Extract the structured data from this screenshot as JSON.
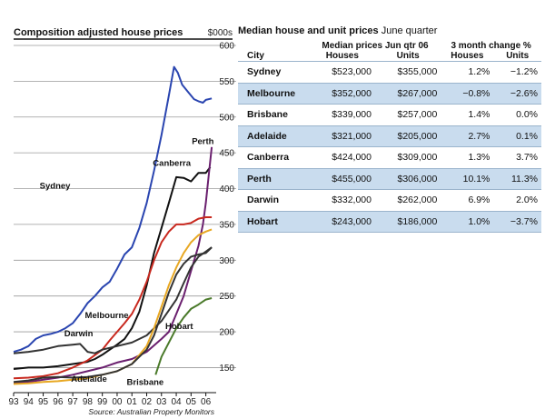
{
  "line_chart": {
    "title": "Composition adjusted house prices",
    "unit": "$000s",
    "source": "Source: Australian Property Monitors"
  },
  "table": {
    "title": "Median house and unit prices",
    "subtitle": "June quarter",
    "group_headers": [
      "Median prices Jun qtr 06",
      "3 month change %"
    ],
    "col_headers": [
      "City",
      "Houses",
      "Units",
      "Houses",
      "Units"
    ]
  },
  "chart_data": [
    {
      "type": "line",
      "title": "Composition adjusted house prices",
      "ylabel": "$000s",
      "xlabel": "",
      "x_ticks": [
        "93",
        "94",
        "95",
        "96",
        "97",
        "98",
        "99",
        "00",
        "01",
        "02",
        "03",
        "04",
        "05",
        "06"
      ],
      "y_ticks": [
        150,
        200,
        250,
        300,
        350,
        400,
        450,
        500,
        550,
        600
      ],
      "ylim": [
        115,
        600
      ],
      "xlim": [
        1993,
        2006.7
      ],
      "grid": true,
      "series": [
        {
          "name": "Sydney",
          "color": "#2a45b0",
          "label_x": 1995.8,
          "label_y": 400,
          "points": [
            [
              1993,
              172
            ],
            [
              1993.5,
              175
            ],
            [
              1994,
              180
            ],
            [
              1994.5,
              190
            ],
            [
              1995,
              195
            ],
            [
              1995.5,
              197
            ],
            [
              1996,
              200
            ],
            [
              1996.5,
              205
            ],
            [
              1997,
              212
            ],
            [
              1997.5,
              225
            ],
            [
              1998,
              240
            ],
            [
              1998.5,
              250
            ],
            [
              1999,
              262
            ],
            [
              1999.5,
              270
            ],
            [
              2000,
              288
            ],
            [
              2000.5,
              308
            ],
            [
              2001,
              318
            ],
            [
              2001.5,
              345
            ],
            [
              2002,
              380
            ],
            [
              2002.5,
              425
            ],
            [
              2003,
              475
            ],
            [
              2003.5,
              530
            ],
            [
              2003.85,
              570
            ],
            [
              2004.1,
              562
            ],
            [
              2004.4,
              545
            ],
            [
              2004.8,
              535
            ],
            [
              2005.2,
              525
            ],
            [
              2005.5,
              522
            ],
            [
              2005.8,
              520
            ],
            [
              2006,
              524
            ],
            [
              2006.4,
              526
            ]
          ]
        },
        {
          "name": "Canberra",
          "color": "#111111",
          "label_x": 2003.7,
          "label_y": 432,
          "points": [
            [
              1993,
              148
            ],
            [
              1994,
              150
            ],
            [
              1995,
              150
            ],
            [
              1996,
              152
            ],
            [
              1997,
              155
            ],
            [
              1998,
              158
            ],
            [
              1998.5,
              162
            ],
            [
              1999,
              168
            ],
            [
              1999.5,
              175
            ],
            [
              2000,
              182
            ],
            [
              2000.5,
              190
            ],
            [
              2001,
              205
            ],
            [
              2001.5,
              228
            ],
            [
              2002,
              265
            ],
            [
              2002.5,
              310
            ],
            [
              2003,
              345
            ],
            [
              2003.5,
              380
            ],
            [
              2004,
              416
            ],
            [
              2004.5,
              415
            ],
            [
              2005,
              410
            ],
            [
              2005.5,
              422
            ],
            [
              2006,
              422
            ],
            [
              2006.3,
              430
            ]
          ]
        },
        {
          "name": "Perth",
          "color": "#6a1f6e",
          "label_x": 2005.8,
          "label_y": 462,
          "points": [
            [
              1993,
              128
            ],
            [
              1994,
              130
            ],
            [
              1995,
              133
            ],
            [
              1996,
              136
            ],
            [
              1997,
              140
            ],
            [
              1998,
              145
            ],
            [
              1999,
              150
            ],
            [
              2000,
              157
            ],
            [
              2001,
              162
            ],
            [
              2002,
              172
            ],
            [
              2003,
              190
            ],
            [
              2003.5,
              200
            ],
            [
              2004,
              225
            ],
            [
              2004.5,
              250
            ],
            [
              2005,
              285
            ],
            [
              2005.5,
              320
            ],
            [
              2005.8,
              350
            ],
            [
              2006,
              380
            ],
            [
              2006.2,
              420
            ],
            [
              2006.4,
              458
            ]
          ]
        },
        {
          "name": "Melbourne",
          "color": "#c8281e",
          "label_x": 1999.3,
          "label_y": 219,
          "points": [
            [
              1993,
              135
            ],
            [
              1994,
              136
            ],
            [
              1995,
              138
            ],
            [
              1996,
              142
            ],
            [
              1997,
              150
            ],
            [
              1998,
              160
            ],
            [
              1999,
              175
            ],
            [
              1999.5,
              188
            ],
            [
              2000,
              200
            ],
            [
              2000.5,
              212
            ],
            [
              2001,
              225
            ],
            [
              2001.5,
              245
            ],
            [
              2002,
              270
            ],
            [
              2002.5,
              300
            ],
            [
              2003,
              325
            ],
            [
              2003.5,
              340
            ],
            [
              2004,
              350
            ],
            [
              2004.5,
              350
            ],
            [
              2005,
              352
            ],
            [
              2005.5,
              358
            ],
            [
              2006,
              360
            ],
            [
              2006.4,
              360
            ]
          ]
        },
        {
          "name": "Darwin",
          "color": "#333333",
          "label_x": 1997.4,
          "label_y": 194,
          "points": [
            [
              1993,
              170
            ],
            [
              1994,
              172
            ],
            [
              1995,
              175
            ],
            [
              1996,
              180
            ],
            [
              1997,
              182
            ],
            [
              1997.5,
              183
            ],
            [
              1998,
              172
            ],
            [
              1998.5,
              170
            ],
            [
              1999,
              175
            ],
            [
              2000,
              180
            ],
            [
              2001,
              185
            ],
            [
              2002,
              195
            ],
            [
              2003,
              215
            ],
            [
              2004,
              245
            ],
            [
              2004.5,
              268
            ],
            [
              2005,
              290
            ],
            [
              2005.5,
              305
            ],
            [
              2006,
              312
            ],
            [
              2006.4,
              318
            ]
          ]
        },
        {
          "name": "Adelaide",
          "color": "#e8a823",
          "label_x": 1998.1,
          "label_y": 130,
          "points": [
            [
              1993,
              127
            ],
            [
              1994,
              128
            ],
            [
              1995,
              130
            ],
            [
              1996,
              131
            ],
            [
              1997,
              133
            ],
            [
              1998,
              135
            ],
            [
              1999,
              140
            ],
            [
              2000,
              145
            ],
            [
              2001,
              155
            ],
            [
              2002,
              180
            ],
            [
              2002.5,
              205
            ],
            [
              2003,
              235
            ],
            [
              2003.5,
              265
            ],
            [
              2004,
              290
            ],
            [
              2004.5,
              310
            ],
            [
              2005,
              325
            ],
            [
              2005.5,
              335
            ],
            [
              2006,
              340
            ],
            [
              2006.4,
              343
            ]
          ]
        },
        {
          "name": "Brisbane",
          "color": "#333333",
          "label_x": 2001.9,
          "label_y": 126,
          "points": [
            [
              1993,
              130
            ],
            [
              1994,
              132
            ],
            [
              1995,
              136
            ],
            [
              1996,
              137
            ],
            [
              1997,
              136
            ],
            [
              1998,
              137
            ],
            [
              1999,
              140
            ],
            [
              2000,
              145
            ],
            [
              2001,
              155
            ],
            [
              2002,
              175
            ],
            [
              2002.5,
              195
            ],
            [
              2003,
              225
            ],
            [
              2003.5,
              255
            ],
            [
              2004,
              280
            ],
            [
              2004.5,
              295
            ],
            [
              2005,
              305
            ],
            [
              2005.5,
              308
            ],
            [
              2006,
              310
            ],
            [
              2006.4,
              318
            ]
          ]
        },
        {
          "name": "Hobart",
          "color": "#4a7a2a",
          "label_x": 2004.2,
          "label_y": 204,
          "points": [
            [
              2002.6,
              140
            ],
            [
              2003,
              165
            ],
            [
              2003.5,
              185
            ],
            [
              2004,
              205
            ],
            [
              2004.5,
              220
            ],
            [
              2005,
              232
            ],
            [
              2005.5,
              238
            ],
            [
              2006,
              245
            ],
            [
              2006.4,
              247
            ]
          ]
        }
      ]
    },
    {
      "type": "table",
      "title": "Median house and unit prices",
      "subtitle": "June quarter",
      "rows": [
        {
          "city": "Sydney",
          "house_price": "$523,000",
          "unit_price": "$355,000",
          "house_change": "1.2%",
          "unit_change": "−1.2%"
        },
        {
          "city": "Melbourne",
          "house_price": "$352,000",
          "unit_price": "$267,000",
          "house_change": "−0.8%",
          "unit_change": "−2.6%"
        },
        {
          "city": "Brisbane",
          "house_price": "$339,000",
          "unit_price": "$257,000",
          "house_change": "1.4%",
          "unit_change": "0.0%"
        },
        {
          "city": "Adelaide",
          "house_price": "$321,000",
          "unit_price": "$205,000",
          "house_change": "2.7%",
          "unit_change": "0.1%"
        },
        {
          "city": "Canberra",
          "house_price": "$424,000",
          "unit_price": "$309,000",
          "house_change": "1.3%",
          "unit_change": "3.7%"
        },
        {
          "city": "Perth",
          "house_price": "$455,000",
          "unit_price": "$306,000",
          "house_change": "10.1%",
          "unit_change": "11.3%"
        },
        {
          "city": "Darwin",
          "house_price": "$332,000",
          "unit_price": "$262,000",
          "house_change": "6.9%",
          "unit_change": "2.0%"
        },
        {
          "city": "Hobart",
          "house_price": "$243,000",
          "unit_price": "$186,000",
          "house_change": "1.0%",
          "unit_change": "−3.7%"
        }
      ]
    }
  ]
}
